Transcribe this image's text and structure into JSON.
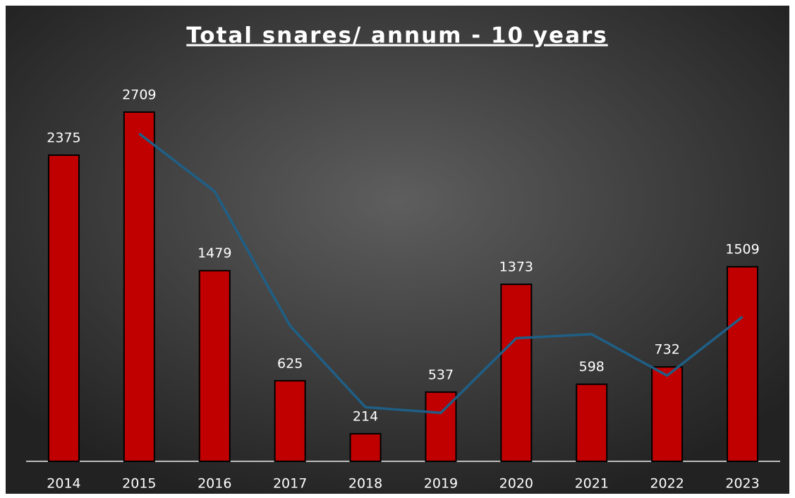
{
  "chart_data": {
    "type": "bar",
    "title": "Total snares/ annum - 10 years",
    "categories": [
      "2014",
      "2015",
      "2016",
      "2017",
      "2018",
      "2019",
      "2020",
      "2021",
      "2022",
      "2023"
    ],
    "series": [
      {
        "type": "bar",
        "color": "#c00000",
        "values": [
          2375,
          2709,
          1479,
          625,
          214,
          537,
          1373,
          598,
          732,
          1509
        ]
      },
      {
        "type": "line",
        "color": "#1f5f86",
        "values": [
          null,
          2542,
          2094,
          1052,
          420,
          376,
          955,
          986,
          665,
          1121
        ]
      }
    ],
    "ylim": [
      0,
      2900
    ]
  }
}
